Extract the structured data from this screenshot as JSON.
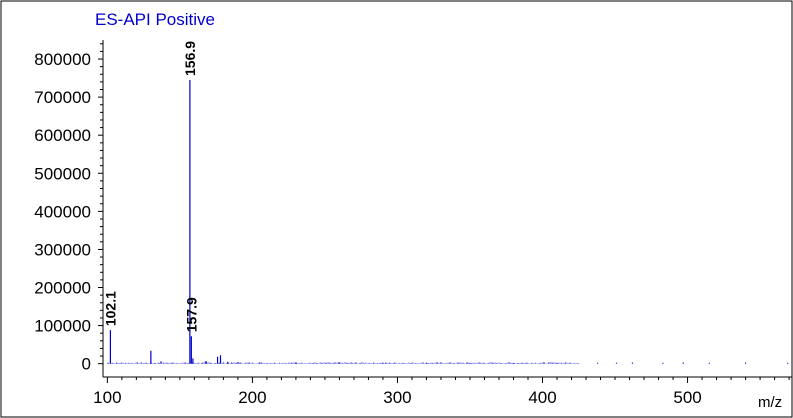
{
  "chart_data": {
    "type": "bar",
    "title": "ES-API Positive",
    "xlabel": "m/z",
    "ylabel": "",
    "xlim": [
      97,
      572
    ],
    "ylim": [
      -35000,
      850000
    ],
    "x_ticks": [
      100,
      200,
      300,
      400,
      500
    ],
    "y_ticks": [
      0,
      100000,
      200000,
      300000,
      400000,
      500000,
      600000,
      700000,
      800000
    ],
    "grid": false,
    "legend": "none",
    "series": [
      {
        "peaks": [
          {
            "mz": 102.1,
            "intensity": 88000,
            "label": "102.1"
          },
          {
            "mz": 130.0,
            "intensity": 34000
          },
          {
            "mz": 137.0,
            "intensity": 6000
          },
          {
            "mz": 156.9,
            "intensity": 745000,
            "label": "156.9"
          },
          {
            "mz": 157.9,
            "intensity": 72000,
            "label": "157.9"
          },
          {
            "mz": 159.0,
            "intensity": 14000
          },
          {
            "mz": 168.0,
            "intensity": 7000
          },
          {
            "mz": 176.0,
            "intensity": 18000
          },
          {
            "mz": 178.0,
            "intensity": 22000
          },
          {
            "mz": 183.0,
            "intensity": 5000
          },
          {
            "mz": 190.0,
            "intensity": 4000
          },
          {
            "mz": 205.0,
            "intensity": 3000
          },
          {
            "mz": 230.0,
            "intensity": 3000
          },
          {
            "mz": 260.0,
            "intensity": 2500
          },
          {
            "mz": 290.0,
            "intensity": 2500
          },
          {
            "mz": 320.0,
            "intensity": 2500
          },
          {
            "mz": 350.0,
            "intensity": 2000
          },
          {
            "mz": 380.0,
            "intensity": 2000
          },
          {
            "mz": 410.0,
            "intensity": 2000
          },
          {
            "mz": 438.0,
            "intensity": 2500
          },
          {
            "mz": 451.0,
            "intensity": 2500
          },
          {
            "mz": 462.0,
            "intensity": 3000
          },
          {
            "mz": 483.0,
            "intensity": 2500
          },
          {
            "mz": 497.0,
            "intensity": 3000
          },
          {
            "mz": 515.0,
            "intensity": 2500
          },
          {
            "mz": 540.0,
            "intensity": 3000
          },
          {
            "mz": 569.0,
            "intensity": 2500
          }
        ],
        "noise_range": [
          100,
          425
        ]
      }
    ]
  },
  "colors": {
    "trace": "#0000cc",
    "title": "#0000cc",
    "axis": "#000000"
  }
}
